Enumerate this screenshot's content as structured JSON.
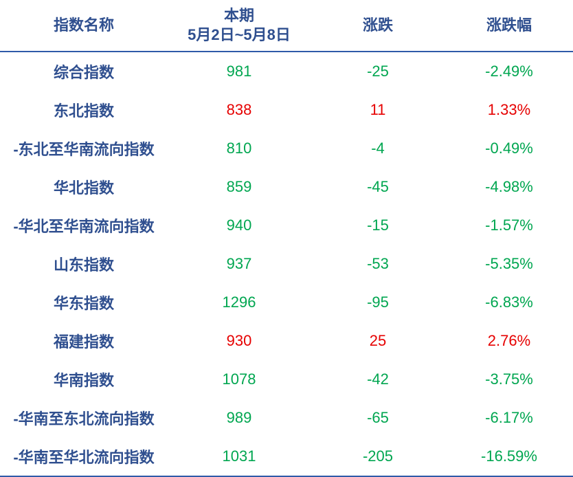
{
  "table": {
    "header": {
      "name": "指数名称",
      "period": "本期",
      "period_dates": "5月2日~5月8日",
      "change": "涨跌",
      "change_pct": "涨跌幅"
    },
    "rows": [
      [
        "综合指数",
        "981",
        "-25",
        "-2.49%"
      ],
      [
        "东北指数",
        "838",
        "11",
        "1.33%"
      ],
      [
        "-东北至华南流向指数",
        "810",
        "-4",
        "-0.49%"
      ],
      [
        "华北指数",
        "859",
        "-45",
        "-4.98%"
      ],
      [
        "-华北至华南流向指数",
        "940",
        "-15",
        "-1.57%"
      ],
      [
        "山东指数",
        "937",
        "-53",
        "-5.35%"
      ],
      [
        "华东指数",
        "1296",
        "-95",
        "-6.83%"
      ],
      [
        "福建指数",
        "930",
        "25",
        "2.76%"
      ],
      [
        "华南指数",
        "1078",
        "-42",
        "-3.75%"
      ],
      [
        "-华南至东北流向指数",
        "989",
        "-65",
        "-6.17%"
      ],
      [
        "-华南至华北流向指数",
        "1031",
        "-205",
        "-16.59%"
      ]
    ]
  }
}
